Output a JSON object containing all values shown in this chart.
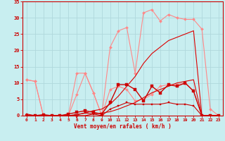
{
  "background_color": "#c8eef0",
  "grid_color": "#b0d8dc",
  "x_values": [
    0,
    1,
    2,
    3,
    4,
    5,
    6,
    7,
    8,
    9,
    10,
    11,
    12,
    13,
    14,
    15,
    16,
    17,
    18,
    19,
    20,
    21,
    22,
    23
  ],
  "ylim": [
    0,
    35
  ],
  "yticks": [
    0,
    5,
    10,
    15,
    20,
    25,
    30,
    35
  ],
  "xlabel": "Vent moyen/en rafales ( km/h )",
  "series": [
    {
      "name": "pink_upper",
      "color": "#ff8888",
      "linewidth": 0.8,
      "marker": "D",
      "markersize": 2.0,
      "y": [
        11,
        10.5,
        0,
        0,
        0,
        0,
        13,
        13,
        7,
        0,
        21,
        26,
        27,
        13,
        31.5,
        32.5,
        29,
        31,
        30,
        29.5,
        29.5,
        26.5,
        2,
        0
      ]
    },
    {
      "name": "pink_lower_spiky",
      "color": "#ff8888",
      "linewidth": 0.8,
      "marker": "D",
      "markersize": 2.0,
      "y": [
        11,
        10.5,
        0,
        0,
        0,
        0,
        6.5,
        13,
        7,
        0,
        8,
        9,
        8,
        4.5,
        5,
        6.5,
        9,
        9.5,
        9.5,
        10,
        7.5,
        0,
        0,
        0
      ]
    },
    {
      "name": "red_straight_upper",
      "color": "#dd0000",
      "linewidth": 0.8,
      "marker": null,
      "markersize": 0,
      "y": [
        0,
        0,
        0,
        0,
        0,
        0,
        0.3,
        0.8,
        1.5,
        2.0,
        3.5,
        6,
        9,
        12,
        16,
        19,
        21,
        23,
        24,
        25,
        26,
        0,
        0,
        0
      ]
    },
    {
      "name": "red_straight_lower",
      "color": "#dd0000",
      "linewidth": 0.8,
      "marker": null,
      "markersize": 0,
      "y": [
        0,
        0,
        0,
        0,
        0,
        0,
        0,
        0,
        0.5,
        0.8,
        1.2,
        2,
        3,
        4,
        5.5,
        7,
        8,
        9,
        10,
        10.5,
        11,
        0,
        0,
        0
      ]
    },
    {
      "name": "dark_red_upper_markers",
      "color": "#cc0000",
      "linewidth": 1.0,
      "marker": "s",
      "markersize": 2.5,
      "y": [
        0,
        0,
        0.3,
        0,
        0,
        0.5,
        1,
        1.5,
        1,
        0.5,
        4,
        9.5,
        9.5,
        8,
        4.5,
        9,
        7,
        9.5,
        9,
        10,
        7.5,
        0,
        0,
        0
      ]
    },
    {
      "name": "dark_red_lower_markers",
      "color": "#cc0000",
      "linewidth": 0.8,
      "marker": "s",
      "markersize": 2.0,
      "y": [
        0.5,
        0,
        0,
        0,
        0,
        0,
        0.3,
        0.8,
        0.5,
        0,
        2,
        3,
        4,
        3.5,
        3.5,
        3.5,
        3.5,
        4,
        3.5,
        3.5,
        3,
        0,
        0,
        0
      ]
    }
  ]
}
